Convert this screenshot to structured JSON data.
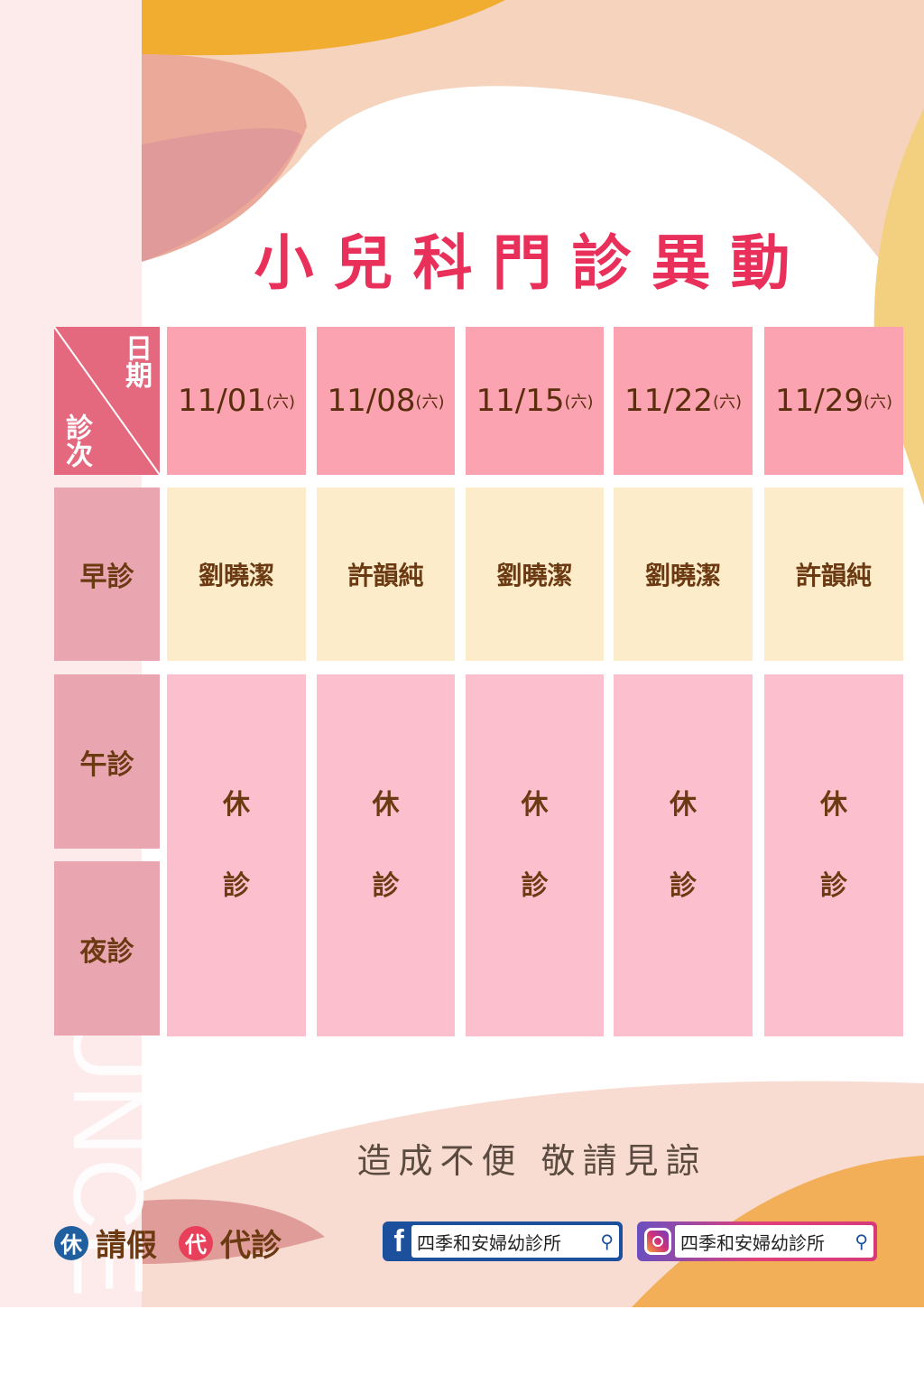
{
  "title": "小兒科門診異動",
  "watermark": "ANNOUNCEM",
  "corner": {
    "date_label": "日期",
    "session_label": "診次"
  },
  "dates": [
    {
      "date": "11/01",
      "weekday": "(六)"
    },
    {
      "date": "11/08",
      "weekday": "(六)"
    },
    {
      "date": "11/15",
      "weekday": "(六)"
    },
    {
      "date": "11/22",
      "weekday": "(六)"
    },
    {
      "date": "11/29",
      "weekday": "(六)"
    }
  ],
  "sessions": {
    "morning": "早診",
    "afternoon": "午診",
    "night": "夜診"
  },
  "morning_doctors": [
    "劉曉潔",
    "許韻純",
    "劉曉潔",
    "劉曉潔",
    "許韻純"
  ],
  "closed": {
    "line1": "休",
    "line2": "診"
  },
  "footer": "造成不便 敬請見諒",
  "legend": {
    "leave_icon": "休",
    "leave_label": "請假",
    "sub_icon": "代",
    "sub_label": "代診"
  },
  "social": {
    "facebook": "四季和安婦幼診所",
    "instagram": "四季和安婦幼診所"
  },
  "colors": {
    "title": "#e8305a",
    "text": "#6b3a12",
    "leave": "#1f5fa0",
    "sub": "#e8405a"
  }
}
